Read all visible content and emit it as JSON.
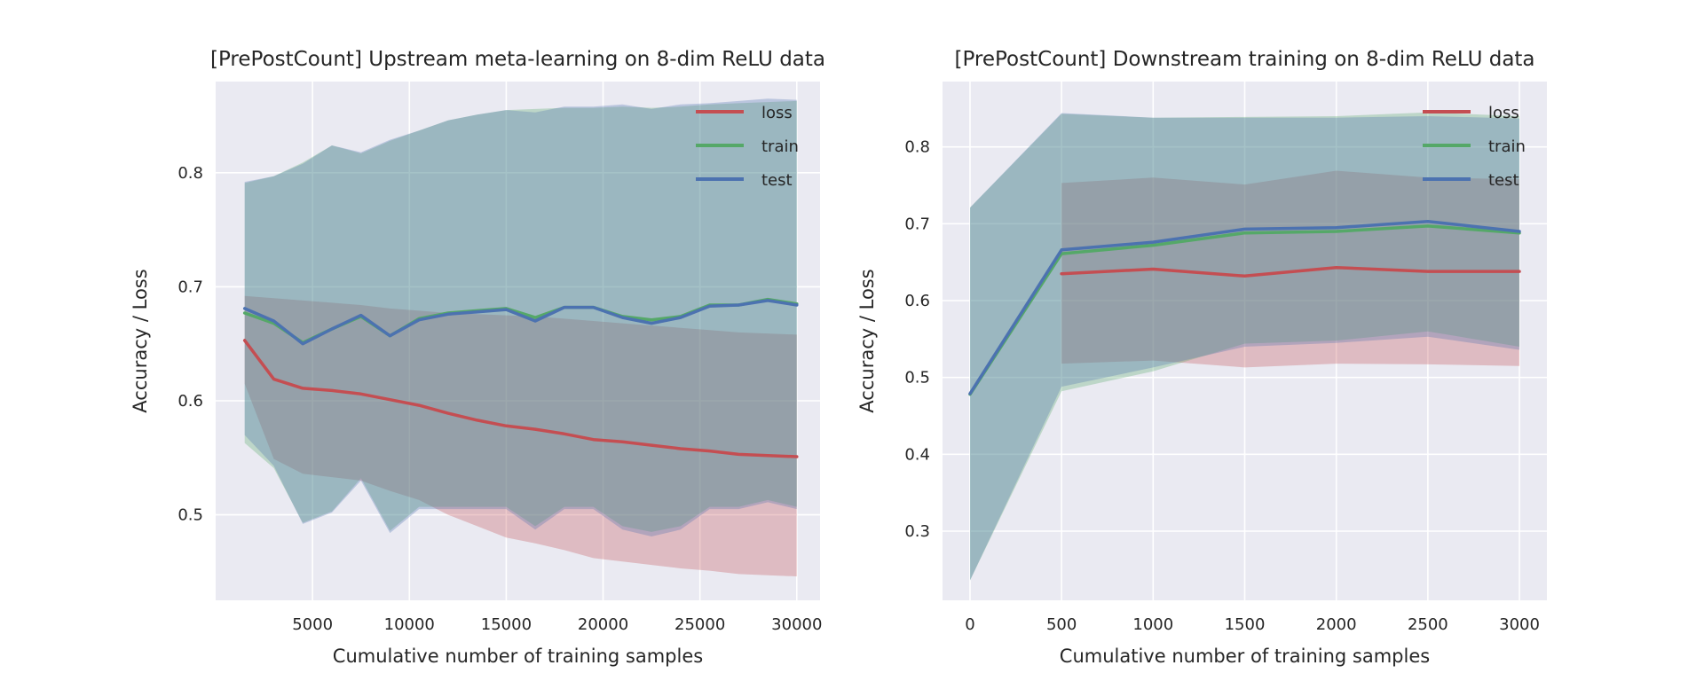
{
  "chart_data": [
    {
      "type": "line",
      "title": "[PrePostCount] Upstream meta-learning on 8-dim ReLU data",
      "xlabel": "Cumulative number of training samples",
      "ylabel": "Accuracy / Loss",
      "xlim": [
        0,
        31200
      ],
      "ylim": [
        0.425,
        0.88
      ],
      "xticks": [
        5000,
        10000,
        15000,
        20000,
        25000,
        30000
      ],
      "yticks": [
        0.5,
        0.6,
        0.7,
        0.8
      ],
      "grid": true,
      "legend": "top-right",
      "x": [
        1500,
        3000,
        4500,
        6000,
        7500,
        9000,
        10500,
        12000,
        13500,
        15000,
        16500,
        18000,
        19500,
        21000,
        22500,
        24000,
        25500,
        27000,
        28500,
        30000
      ],
      "series": [
        {
          "name": "loss",
          "color": "#c44e52",
          "values": [
            0.653,
            0.619,
            0.611,
            0.609,
            0.606,
            0.601,
            0.596,
            0.589,
            0.583,
            0.578,
            0.575,
            0.571,
            0.566,
            0.564,
            0.561,
            0.558,
            0.556,
            0.553,
            0.552,
            0.551
          ],
          "lower": [
            0.615,
            0.549,
            0.536,
            0.533,
            0.53,
            0.521,
            0.513,
            0.5,
            0.49,
            0.48,
            0.475,
            0.469,
            0.462,
            0.459,
            0.456,
            0.453,
            0.451,
            0.448,
            0.447,
            0.446
          ],
          "upper": [
            0.692,
            0.69,
            0.688,
            0.686,
            0.684,
            0.681,
            0.679,
            0.677,
            0.676,
            0.675,
            0.674,
            0.672,
            0.67,
            0.668,
            0.666,
            0.664,
            0.662,
            0.66,
            0.659,
            0.658
          ]
        },
        {
          "name": "train",
          "color": "#55a868",
          "values": [
            0.677,
            0.668,
            0.651,
            0.663,
            0.674,
            0.657,
            0.672,
            0.677,
            0.679,
            0.681,
            0.673,
            0.682,
            0.682,
            0.674,
            0.671,
            0.674,
            0.684,
            0.684,
            0.689,
            0.685
          ],
          "lower": [
            0.563,
            0.541,
            0.493,
            0.503,
            0.532,
            0.486,
            0.507,
            0.507,
            0.507,
            0.507,
            0.49,
            0.507,
            0.507,
            0.49,
            0.485,
            0.49,
            0.507,
            0.507,
            0.513,
            0.507
          ],
          "upper": [
            0.791,
            0.797,
            0.809,
            0.824,
            0.817,
            0.828,
            0.837,
            0.846,
            0.851,
            0.855,
            0.856,
            0.857,
            0.857,
            0.858,
            0.857,
            0.858,
            0.86,
            0.861,
            0.862,
            0.863
          ]
        },
        {
          "name": "test",
          "color": "#4c72b0",
          "values": [
            0.681,
            0.67,
            0.65,
            0.663,
            0.675,
            0.657,
            0.671,
            0.676,
            0.678,
            0.68,
            0.67,
            0.682,
            0.682,
            0.673,
            0.668,
            0.673,
            0.683,
            0.684,
            0.688,
            0.684
          ],
          "lower": [
            0.57,
            0.543,
            0.492,
            0.502,
            0.53,
            0.484,
            0.505,
            0.505,
            0.505,
            0.505,
            0.487,
            0.505,
            0.505,
            0.487,
            0.481,
            0.487,
            0.505,
            0.505,
            0.511,
            0.505
          ],
          "upper": [
            0.792,
            0.797,
            0.808,
            0.824,
            0.818,
            0.829,
            0.837,
            0.846,
            0.851,
            0.855,
            0.853,
            0.858,
            0.858,
            0.86,
            0.856,
            0.86,
            0.861,
            0.863,
            0.865,
            0.864
          ]
        }
      ]
    },
    {
      "type": "line",
      "title": "[PrePostCount] Downstream training on 8-dim ReLU data",
      "xlabel": "Cumulative number of training samples",
      "ylabel": "Accuracy / Loss",
      "xlim": [
        -150,
        3150
      ],
      "ylim": [
        0.21,
        0.885
      ],
      "xticks": [
        0,
        500,
        1000,
        1500,
        2000,
        2500,
        3000
      ],
      "yticks": [
        0.3,
        0.4,
        0.5,
        0.6,
        0.7,
        0.8
      ],
      "grid": true,
      "legend": "top-right",
      "series": [
        {
          "name": "loss",
          "color": "#c44e52",
          "x": [
            500,
            1000,
            1500,
            2000,
            2500,
            3000
          ],
          "values": [
            0.635,
            0.641,
            0.632,
            0.643,
            0.638,
            0.638
          ],
          "lower": [
            0.518,
            0.522,
            0.513,
            0.518,
            0.517,
            0.515
          ],
          "upper": [
            0.753,
            0.76,
            0.751,
            0.769,
            0.76,
            0.758
          ]
        },
        {
          "name": "train",
          "color": "#55a868",
          "x": [
            0,
            500,
            1000,
            1500,
            2000,
            2500,
            3000
          ],
          "values": [
            0.478,
            0.661,
            0.672,
            0.688,
            0.69,
            0.697,
            0.688
          ],
          "lower": [
            0.236,
            0.482,
            0.508,
            0.544,
            0.548,
            0.56,
            0.54
          ],
          "upper": [
            0.721,
            0.843,
            0.838,
            0.839,
            0.84,
            0.845,
            0.84
          ]
        },
        {
          "name": "test",
          "color": "#4c72b0",
          "x": [
            0,
            500,
            1000,
            1500,
            2000,
            2500,
            3000
          ],
          "values": [
            0.479,
            0.666,
            0.676,
            0.693,
            0.695,
            0.703,
            0.69
          ],
          "lower": [
            0.236,
            0.488,
            0.513,
            0.54,
            0.545,
            0.553,
            0.536
          ],
          "upper": [
            0.721,
            0.844,
            0.838,
            0.838,
            0.838,
            0.84,
            0.837
          ]
        }
      ]
    }
  ]
}
